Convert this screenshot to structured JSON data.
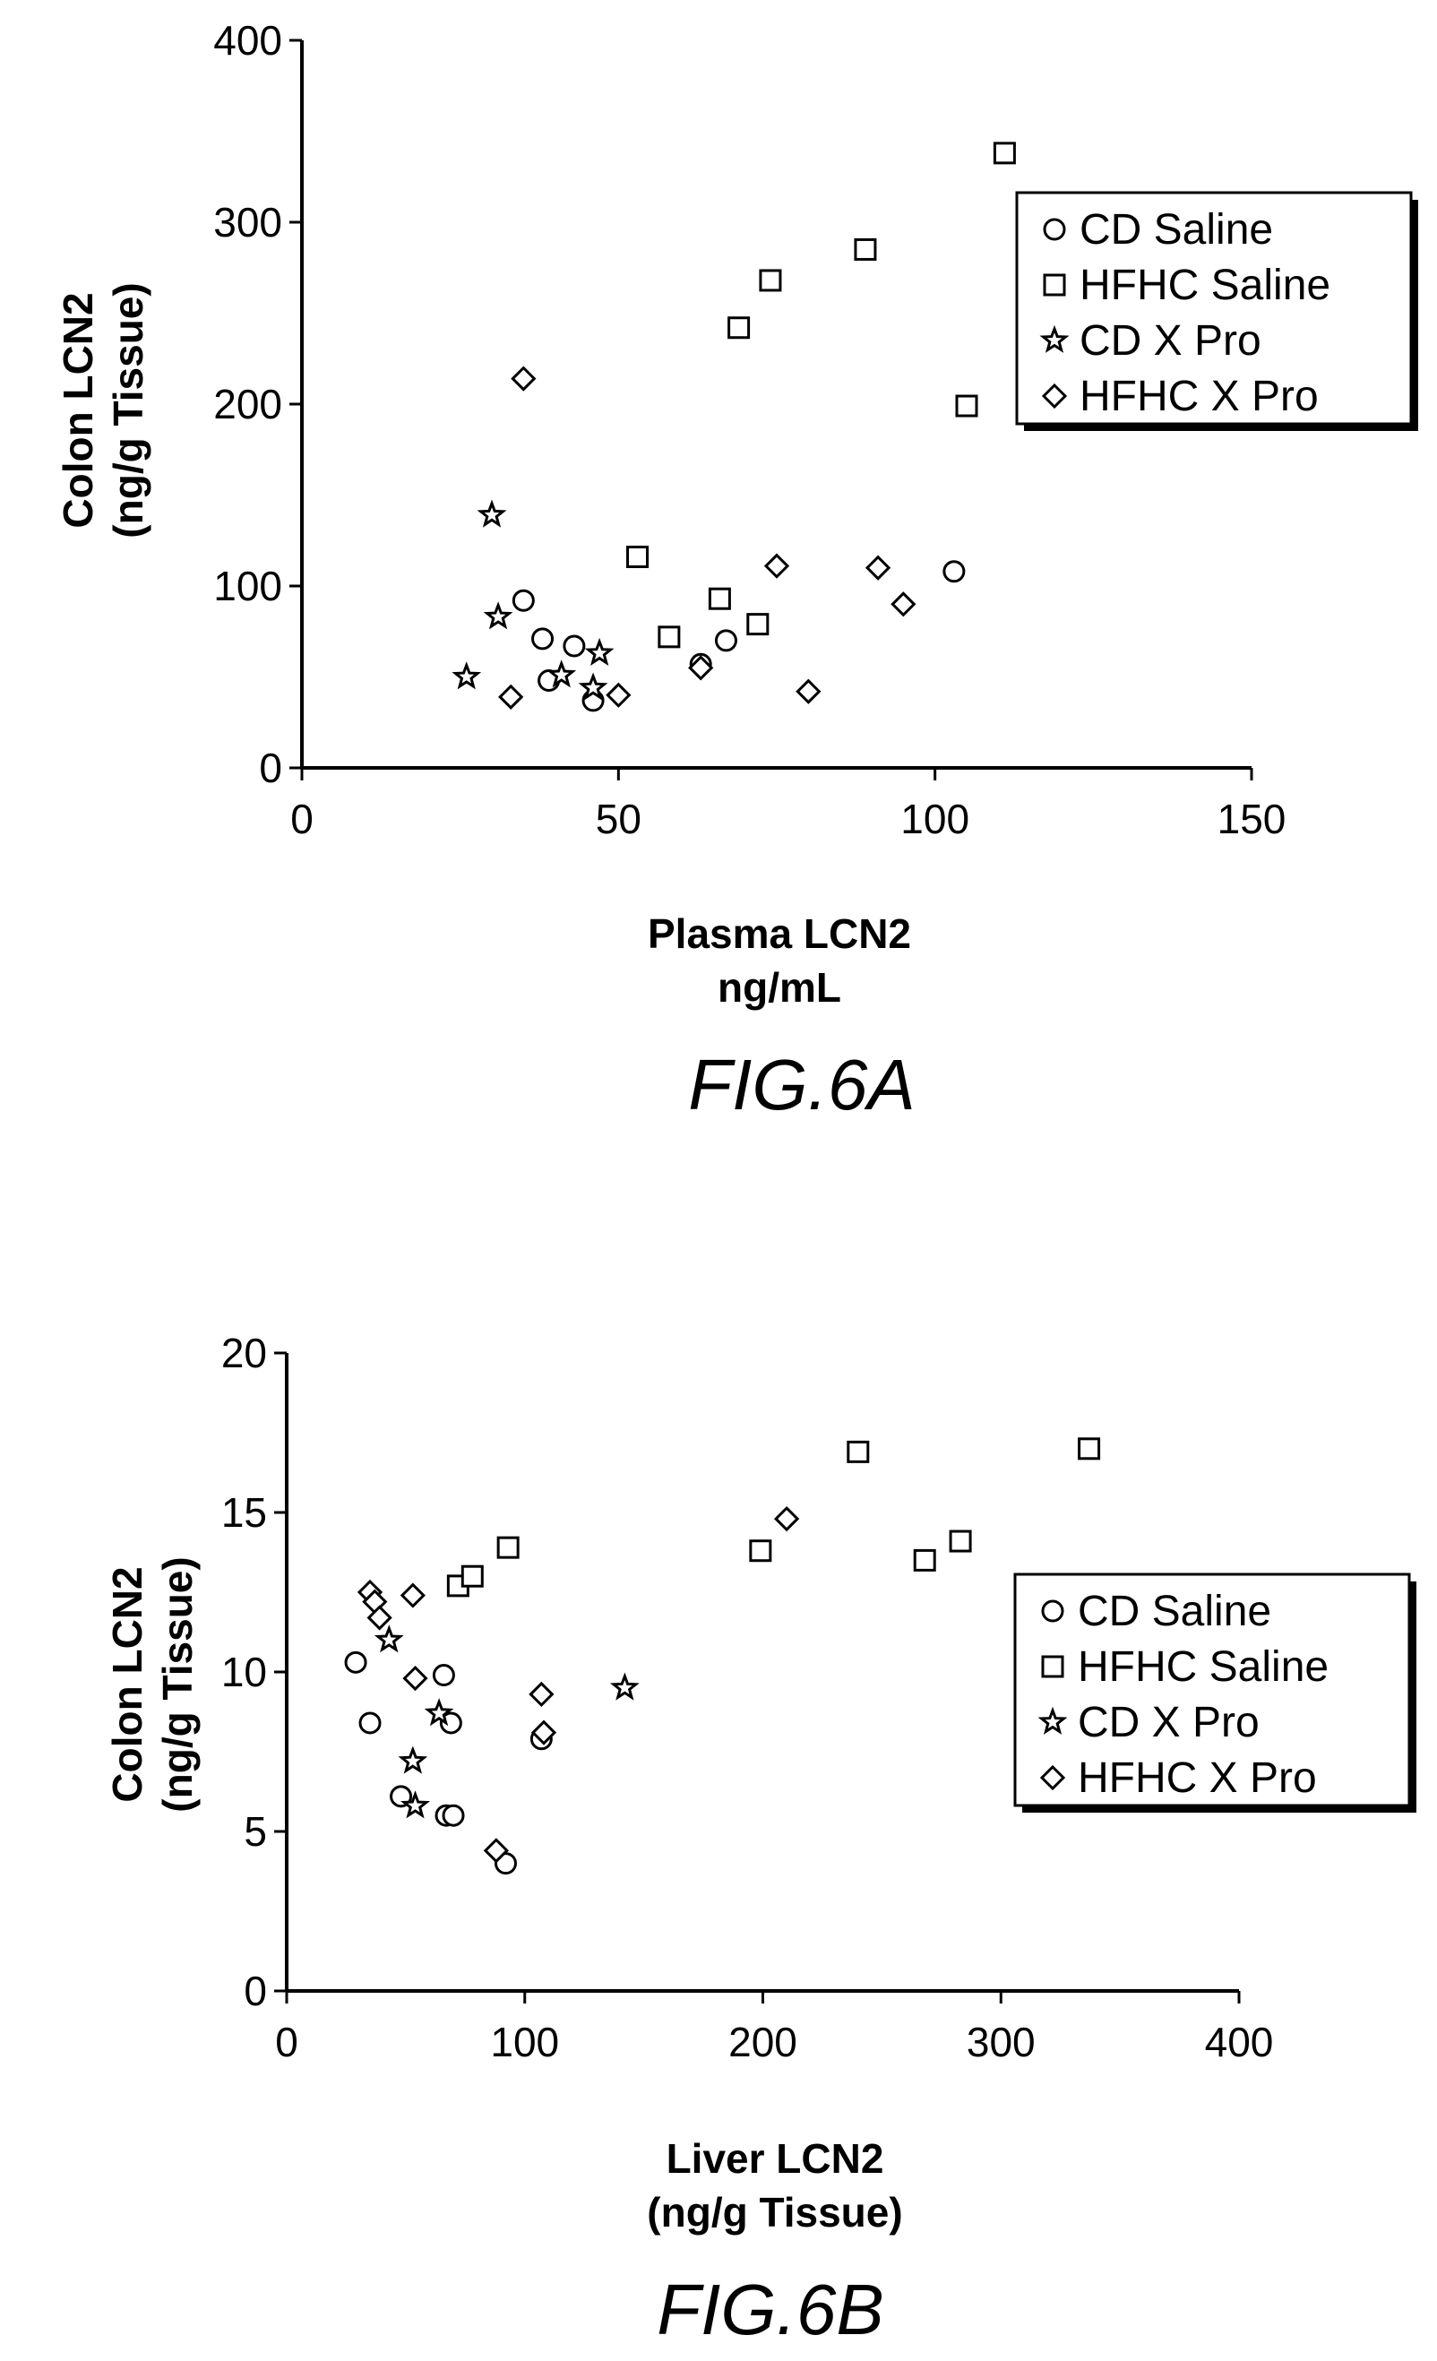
{
  "figures": [
    {
      "id": "fig6a",
      "caption": "FIG.6A"
    },
    {
      "id": "fig6b",
      "caption": "FIG.6B"
    }
  ],
  "chart_data": [
    {
      "type": "scatter",
      "title": "",
      "xlabel": "Plasma LCN2\nng/mL",
      "ylabel": "Colon LCN2\n(ng/g Tissue)",
      "xlim": [
        0,
        150
      ],
      "ylim": [
        0,
        400
      ],
      "xticks": [
        0,
        50,
        100,
        150
      ],
      "yticks": [
        0,
        100,
        200,
        300,
        400
      ],
      "legend_position": "top-right",
      "series": [
        {
          "name": "CD Saline",
          "marker": "circle",
          "points": [
            [
              35,
              92
            ],
            [
              38,
              71
            ],
            [
              39,
              48
            ],
            [
              43,
              67
            ],
            [
              46,
              37
            ],
            [
              63,
              57
            ],
            [
              67,
              70
            ],
            [
              103,
              108
            ]
          ]
        },
        {
          "name": "HFHC Saline",
          "marker": "square",
          "points": [
            [
              53,
              116
            ],
            [
              58,
              72
            ],
            [
              66,
              93
            ],
            [
              69,
              242
            ],
            [
              72,
              79
            ],
            [
              74,
              268
            ],
            [
              89,
              285
            ],
            [
              105,
              199
            ],
            [
              111,
              338
            ]
          ]
        },
        {
          "name": "CD X Pro",
          "marker": "star",
          "points": [
            [
              26,
              50
            ],
            [
              30,
              139
            ],
            [
              31,
              83
            ],
            [
              41,
              51
            ],
            [
              46,
              44
            ],
            [
              47,
              63
            ]
          ]
        },
        {
          "name": "HFHC X Pro",
          "marker": "diamond",
          "points": [
            [
              33,
              39
            ],
            [
              35,
              214
            ],
            [
              50,
              40
            ],
            [
              63,
              55
            ],
            [
              75,
              111
            ],
            [
              80,
              42
            ],
            [
              91,
              110
            ],
            [
              95,
              90
            ]
          ]
        }
      ]
    },
    {
      "type": "scatter",
      "title": "",
      "xlabel": "Liver LCN2\n(ng/g Tissue)",
      "ylabel": "Colon LCN2\n(ng/g Tissue)",
      "xlim": [
        0,
        400
      ],
      "ylim": [
        0,
        20
      ],
      "xticks": [
        0,
        100,
        200,
        300,
        400
      ],
      "yticks": [
        0,
        5,
        10,
        15,
        20
      ],
      "legend_position": "right",
      "series": [
        {
          "name": "CD Saline",
          "marker": "circle",
          "points": [
            [
              29,
              10.3
            ],
            [
              35,
              8.4
            ],
            [
              48,
              6.1
            ],
            [
              66,
              9.9
            ],
            [
              67,
              5.5
            ],
            [
              69,
              8.4
            ],
            [
              70,
              5.5
            ],
            [
              92,
              4.0
            ],
            [
              107,
              7.9
            ]
          ]
        },
        {
          "name": "HFHC Saline",
          "marker": "square",
          "points": [
            [
              72,
              12.7
            ],
            [
              78,
              13.0
            ],
            [
              93,
              13.9
            ],
            [
              199,
              13.8
            ],
            [
              240,
              16.9
            ],
            [
              268,
              13.5
            ],
            [
              283,
              14.1
            ],
            [
              337,
              17.0
            ]
          ]
        },
        {
          "name": "CD X Pro",
          "marker": "star",
          "points": [
            [
              43,
              11.0
            ],
            [
              53,
              7.2
            ],
            [
              54,
              5.8
            ],
            [
              64,
              8.7
            ],
            [
              142,
              9.5
            ]
          ]
        },
        {
          "name": "HFHC X Pro",
          "marker": "diamond",
          "points": [
            [
              35,
              12.5
            ],
            [
              37,
              12.2
            ],
            [
              39,
              11.7
            ],
            [
              53,
              12.4
            ],
            [
              54,
              9.8
            ],
            [
              88,
              4.4
            ],
            [
              107,
              9.3
            ],
            [
              108,
              8.1
            ],
            [
              210,
              14.8
            ]
          ]
        }
      ]
    }
  ]
}
